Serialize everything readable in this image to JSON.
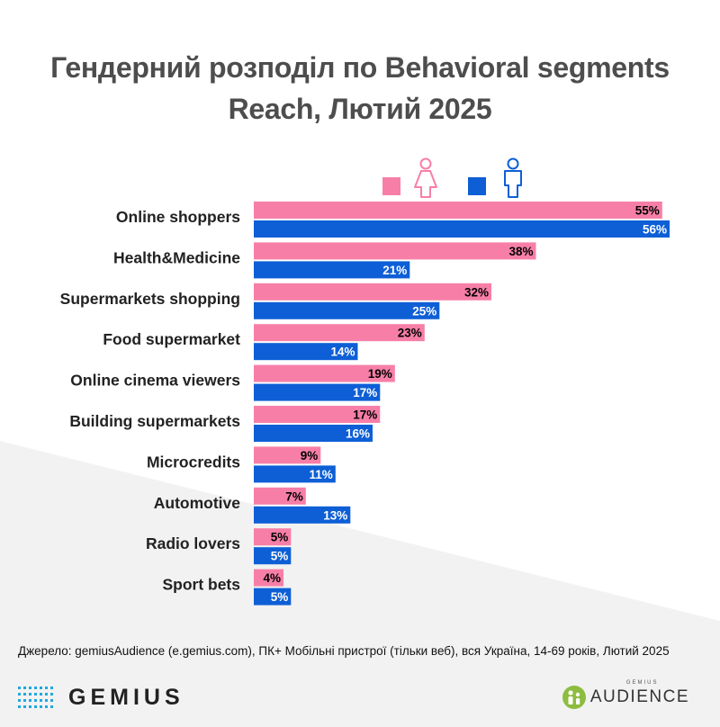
{
  "title": {
    "line1": "Гендерний розподіл по Behavioral segments",
    "line2": "Reach, Лютий 2025"
  },
  "colors": {
    "female": "#f77fa7",
    "male": "#0e5fd6",
    "female_label": "#000000",
    "male_label": "#ffffff",
    "title": "#4d4d4d",
    "background_wedge": "#f2f2f2"
  },
  "legend": {
    "female_icon": "female-figure-icon",
    "male_icon": "male-figure-icon"
  },
  "chart_data": {
    "type": "bar",
    "orientation": "horizontal",
    "title": "Гендерний розподіл по Behavioral segments Reach, Лютий 2025",
    "categories": [
      "Online shoppers",
      "Health&Medicine",
      "Supermarkets shopping",
      "Food supermarket",
      "Online cinema viewers",
      "Building supermarkets",
      "Microcredits",
      "Automotive",
      "Radio lovers",
      "Sport bets"
    ],
    "series": [
      {
        "name": "female",
        "values": [
          55,
          38,
          32,
          23,
          19,
          17,
          9,
          7,
          5,
          4
        ]
      },
      {
        "name": "male",
        "values": [
          56,
          21,
          25,
          14,
          17,
          16,
          11,
          13,
          5,
          5
        ]
      }
    ],
    "value_suffix": "%",
    "xlim": [
      0,
      56
    ],
    "grid": false
  },
  "source": "Джерело: gemiusAudience (e.gemius.com), ПК+ Мобільні пристрої (тільки веб), вся Україна, 14-69 років, Лютий 2025",
  "branding": {
    "left_name": "GEMIUS",
    "left_icon": "gemius-dots-icon",
    "right_small": "GEMIUS",
    "right_big": "AUDIENCE",
    "right_icon": "audience-people-icon"
  }
}
